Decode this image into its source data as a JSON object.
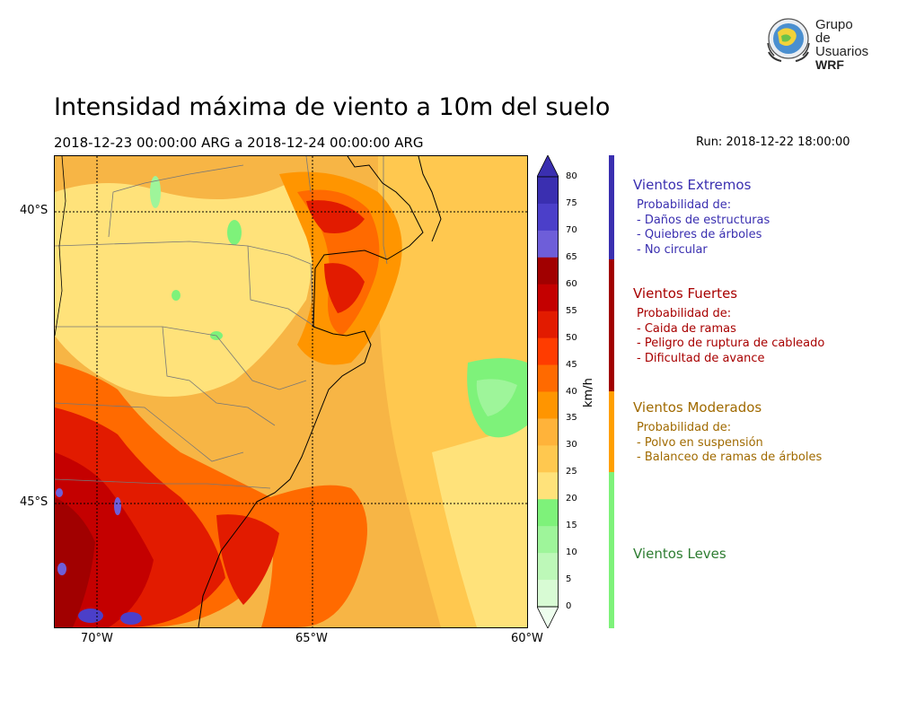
{
  "logo": {
    "line1": "Grupo de",
    "line2": "Usuarios",
    "line3": "WRF"
  },
  "title": "Intensidad máxima de viento a 10m del suelo",
  "subtitle": "2018-12-23 00:00:00 ARG  a  2018-12-24 00:00:00 ARG",
  "run": "Run: 2018-12-22 18:00:00",
  "map": {
    "lat_labels": [
      "40°S",
      "45°S"
    ],
    "lon_labels": [
      "70°W",
      "65°W",
      "60°W"
    ]
  },
  "colorbar": {
    "unit": "km/h",
    "ticks": [
      "80",
      "75",
      "70",
      "65",
      "60",
      "55",
      "50",
      "45",
      "40",
      "35",
      "30",
      "25",
      "20",
      "15",
      "10",
      "5",
      "0"
    ],
    "colors": [
      "#3a2fb0",
      "#4b3fc9",
      "#6e5ed9",
      "#a10000",
      "#c40000",
      "#e21b00",
      "#ff3c00",
      "#ff6a00",
      "#ff9500",
      "#ffb33a",
      "#ffc84f",
      "#ffe27a",
      "#7ef27a",
      "#9ef59a",
      "#bdf8b8",
      "#d8fbd4",
      "#eefeee"
    ]
  },
  "categories": [
    {
      "title": "Vientos Extremos",
      "lines": [
        "Probabilidad de:",
        "- Daños de estructuras",
        "- Quiebres de árboles",
        "- No circular"
      ],
      "color": "#3a2fb0",
      "bar_color": "#3a2fb0"
    },
    {
      "title": "Vientos Fuertes",
      "lines": [
        "Probabilidad de:",
        "- Caida de ramas",
        "- Peligro de ruptura de cableado",
        "- Dificultad de avance"
      ],
      "color": "#a80000",
      "bar_color": "#a10000"
    },
    {
      "title": "Vientos Moderados",
      "lines": [
        "Probabilidad de:",
        "- Polvo en suspensión",
        "- Balanceo de ramas de árboles"
      ],
      "color": "#a06a00",
      "bar_color": "#ff9f00"
    },
    {
      "title": "Vientos Leves",
      "lines": [],
      "color": "#2e7d32",
      "bar_color": "#7ef27a"
    }
  ]
}
